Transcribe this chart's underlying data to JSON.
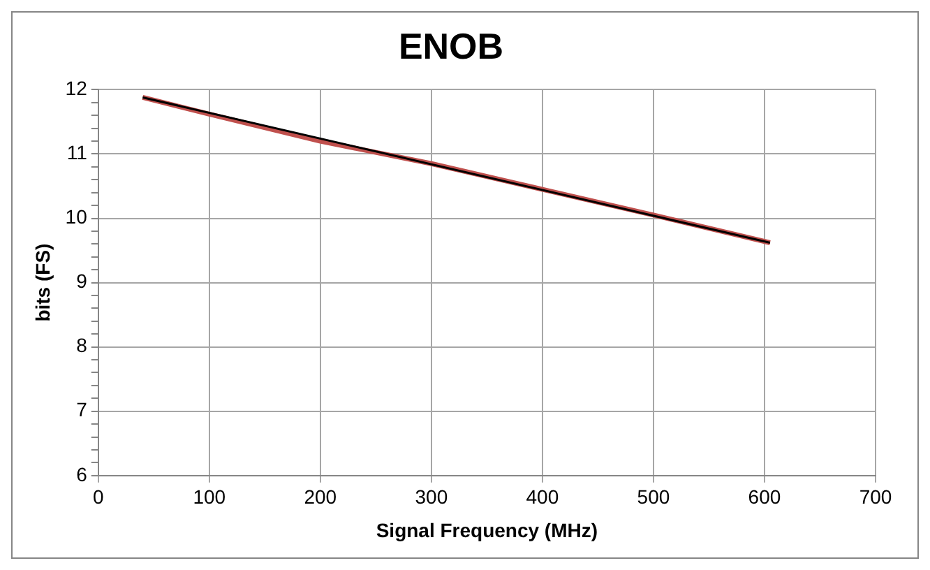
{
  "chart_data": {
    "type": "line",
    "title": "ENOB",
    "xlabel": "Signal Frequency (MHz)",
    "ylabel": "bits (FS)",
    "xlim": [
      0,
      700
    ],
    "xticks": [
      0,
      100,
      200,
      300,
      400,
      500,
      600,
      700
    ],
    "ylim": [
      6,
      12
    ],
    "yticks": [
      6,
      {
        "value": 6.2,
        "label": null
      },
      {
        "value": 6.4,
        "label": null
      },
      {
        "value": 6.6,
        "label": null
      },
      {
        "value": 6.8,
        "label": null
      },
      7,
      {
        "value": 7.2,
        "label": null
      },
      {
        "value": 7.4,
        "label": null
      },
      {
        "value": 7.6,
        "label": null
      },
      {
        "value": 7.8,
        "label": null
      },
      8,
      {
        "value": 8.2,
        "label": null
      },
      {
        "value": 8.4,
        "label": null
      },
      {
        "value": 8.6,
        "label": null
      },
      {
        "value": 8.8,
        "label": null
      },
      9,
      {
        "value": 9.2,
        "label": null
      },
      {
        "value": 9.4,
        "label": null
      },
      {
        "value": 9.6,
        "label": null
      },
      {
        "value": 9.8,
        "label": null
      },
      10,
      {
        "value": 10.2,
        "label": null
      },
      {
        "value": 10.4,
        "label": null
      },
      {
        "value": 10.6,
        "label": null
      },
      {
        "value": 10.8,
        "label": null
      },
      11,
      {
        "value": 11.2,
        "label": null
      },
      {
        "value": 11.4,
        "label": null
      },
      {
        "value": 11.6,
        "label": null
      },
      {
        "value": 11.8,
        "label": null
      },
      12
    ],
    "grid": true,
    "marker": "none",
    "line_style": "solid",
    "series": [
      {
        "color": "#c0504d",
        "x": [
          40,
          100,
          200,
          300,
          400,
          500,
          605
        ],
        "values": [
          11.88,
          11.62,
          11.2,
          10.85,
          10.45,
          10.05,
          9.62
        ]
      },
      {
        "color": "#000000",
        "x": [
          40,
          605
        ],
        "values": [
          11.88,
          9.62
        ]
      }
    ]
  }
}
